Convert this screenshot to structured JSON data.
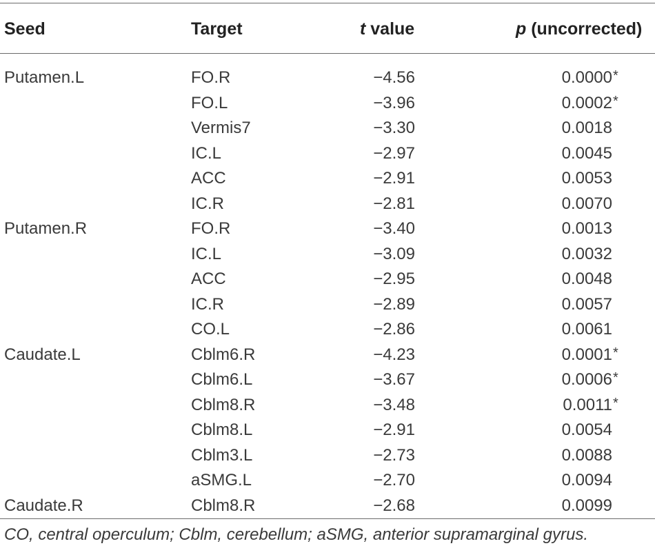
{
  "table": {
    "headers": {
      "seed": "Seed",
      "target": "Target",
      "t_var": "t",
      "t_rest": " value",
      "p_var": "p",
      "p_rest": " (uncorrected)"
    },
    "rows": [
      {
        "seed": "Putamen.L",
        "target": "FO.R",
        "t": "−4.56",
        "p": "0.0000",
        "star": "*"
      },
      {
        "seed": "",
        "target": "FO.L",
        "t": "−3.96",
        "p": "0.0002",
        "star": "*"
      },
      {
        "seed": "",
        "target": "Vermis7",
        "t": "−3.30",
        "p": "0.0018",
        "star": ""
      },
      {
        "seed": "",
        "target": "IC.L",
        "t": "−2.97",
        "p": "0.0045",
        "star": ""
      },
      {
        "seed": "",
        "target": "ACC",
        "t": "−2.91",
        "p": "0.0053",
        "star": ""
      },
      {
        "seed": "",
        "target": "IC.R",
        "t": "−2.81",
        "p": "0.0070",
        "star": ""
      },
      {
        "seed": "Putamen.R",
        "target": "FO.R",
        "t": "−3.40",
        "p": "0.0013",
        "star": ""
      },
      {
        "seed": "",
        "target": "IC.L",
        "t": "−3.09",
        "p": "0.0032",
        "star": ""
      },
      {
        "seed": "",
        "target": "ACC",
        "t": "−2.95",
        "p": "0.0048",
        "star": ""
      },
      {
        "seed": "",
        "target": "IC.R",
        "t": "−2.89",
        "p": "0.0057",
        "star": ""
      },
      {
        "seed": "",
        "target": "CO.L",
        "t": "−2.86",
        "p": "0.0061",
        "star": ""
      },
      {
        "seed": "Caudate.L",
        "target": "Cblm6.R",
        "t": "−4.23",
        "p": "0.0001",
        "star": "*"
      },
      {
        "seed": "",
        "target": "Cblm6.L",
        "t": "−3.67",
        "p": "0.0006",
        "star": "*"
      },
      {
        "seed": "",
        "target": "Cblm8.R",
        "t": "−3.48",
        "p": "0.0011",
        "star": "*"
      },
      {
        "seed": "",
        "target": "Cblm8.L",
        "t": "−2.91",
        "p": "0.0054",
        "star": ""
      },
      {
        "seed": "",
        "target": "Cblm3.L",
        "t": "−2.73",
        "p": "0.0088",
        "star": ""
      },
      {
        "seed": "",
        "target": "aSMG.L",
        "t": "−2.70",
        "p": "0.0094",
        "star": ""
      },
      {
        "seed": "Caudate.R",
        "target": "Cblm8.R",
        "t": "−2.68",
        "p": "0.0099",
        "star": ""
      }
    ],
    "footnote": "CO, central operculum; Cblm, cerebellum; aSMG, anterior supramarginal gyrus."
  }
}
